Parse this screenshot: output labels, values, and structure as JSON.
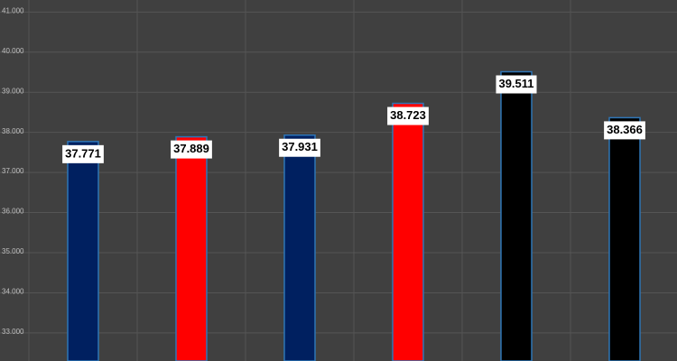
{
  "chart_data": {
    "type": "bar",
    "categories": [
      null,
      null,
      null,
      null,
      null,
      null
    ],
    "values": [
      37.771,
      37.889,
      37.931,
      38.723,
      39.511,
      38.366
    ],
    "colors": [
      "#002060",
      "#ff0000",
      "#002060",
      "#ff0000",
      "#000000",
      "#000000"
    ],
    "ylim": [
      32.3,
      41.3
    ],
    "yticks": [
      {
        "value": 33,
        "label": "33.000"
      },
      {
        "value": 34,
        "label": "34.000"
      },
      {
        "value": 35,
        "label": "35.000"
      },
      {
        "value": 36,
        "label": "36.000"
      },
      {
        "value": 37,
        "label": "37.000"
      },
      {
        "value": 38,
        "label": "38.000"
      },
      {
        "value": 39,
        "label": "39.000"
      },
      {
        "value": 40,
        "label": "40.000"
      },
      {
        "value": 41,
        "label": "41.000"
      }
    ],
    "grid": true
  }
}
